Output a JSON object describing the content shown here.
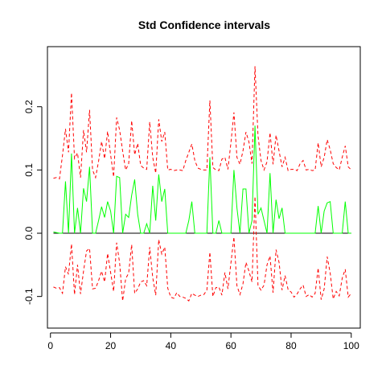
{
  "chart_data": {
    "type": "line",
    "title": "Std Confidence intervals",
    "xlabel": "",
    "ylabel": "",
    "xlim": [
      -1,
      103
    ],
    "ylim": [
      -0.15,
      0.295
    ],
    "x_ticks": [
      0,
      20,
      40,
      60,
      80,
      100
    ],
    "y_ticks": [
      -0.1,
      0.0,
      0.1,
      0.2
    ],
    "x_tick_labels": [
      "0",
      "20",
      "40",
      "60",
      "80",
      "100"
    ],
    "y_tick_labels": [
      "-0.1",
      "0.0",
      "0.1",
      "0.2"
    ],
    "grid": false,
    "legend": "none",
    "reference_line": {
      "y": 0,
      "color": "#000000"
    },
    "x": [
      1,
      2,
      3,
      4,
      5,
      6,
      7,
      8,
      9,
      10,
      11,
      12,
      13,
      14,
      15,
      16,
      17,
      18,
      19,
      20,
      21,
      22,
      23,
      24,
      25,
      26,
      27,
      28,
      29,
      30,
      31,
      32,
      33,
      34,
      35,
      36,
      37,
      38,
      39,
      40,
      41,
      42,
      43,
      44,
      45,
      46,
      47,
      48,
      49,
      50,
      51,
      52,
      53,
      54,
      55,
      56,
      57,
      58,
      59,
      60,
      61,
      62,
      63,
      64,
      65,
      66,
      67,
      68,
      69,
      70,
      71,
      72,
      73,
      74,
      75,
      76,
      77,
      78,
      79,
      80,
      81,
      82,
      83,
      84,
      85,
      86,
      87,
      88,
      89,
      90,
      91,
      92,
      93,
      94,
      95,
      96,
      97,
      98,
      99,
      100
    ],
    "series": [
      {
        "color": "#ff0000",
        "dash": "dashed",
        "values": [
          0.087,
          0.088,
          0.086,
          0.123,
          0.165,
          0.128,
          0.222,
          0.118,
          0.127,
          0.088,
          0.163,
          0.128,
          0.195,
          0.1,
          0.088,
          0.114,
          0.145,
          0.118,
          0.161,
          0.124,
          0.089,
          0.183,
          0.163,
          0.13,
          0.1,
          0.11,
          0.178,
          0.124,
          0.142,
          0.107,
          0.103,
          0.101,
          0.176,
          0.12,
          0.095,
          0.18,
          0.145,
          0.16,
          0.1,
          0.101,
          0.099,
          0.1,
          0.1,
          0.099,
          0.115,
          0.128,
          0.141,
          0.115,
          0.103,
          0.101,
          0.1,
          0.1,
          0.21,
          0.104,
          0.1,
          0.099,
          0.117,
          0.12,
          0.101,
          0.143,
          0.191,
          0.12,
          0.109,
          0.13,
          0.16,
          0.144,
          0.11,
          0.264,
          0.154,
          0.115,
          0.1,
          0.113,
          0.159,
          0.109,
          0.155,
          0.13,
          0.105,
          0.12,
          0.099,
          0.101,
          0.101,
          0.099,
          0.11,
          0.115,
          0.1,
          0.101,
          0.099,
          0.1,
          0.143,
          0.105,
          0.12,
          0.148,
          0.132,
          0.11,
          0.104,
          0.1,
          0.12,
          0.138,
          0.105,
          0.1
        ]
      },
      {
        "color": "#ff0000",
        "dash": "dashed",
        "values": [
          -0.085,
          -0.087,
          -0.086,
          -0.095,
          -0.053,
          -0.065,
          -0.017,
          -0.097,
          -0.05,
          -0.096,
          -0.06,
          -0.028,
          -0.024,
          -0.088,
          -0.087,
          -0.075,
          -0.06,
          -0.077,
          -0.032,
          -0.062,
          -0.092,
          -0.015,
          -0.047,
          -0.107,
          -0.072,
          -0.063,
          -0.018,
          -0.095,
          -0.088,
          -0.077,
          -0.075,
          -0.083,
          -0.022,
          -0.07,
          -0.098,
          -0.01,
          -0.033,
          -0.022,
          -0.087,
          -0.101,
          -0.103,
          -0.094,
          -0.1,
          -0.101,
          -0.103,
          -0.107,
          -0.095,
          -0.098,
          -0.1,
          -0.098,
          -0.097,
          -0.09,
          -0.03,
          -0.1,
          -0.086,
          -0.085,
          -0.098,
          -0.062,
          -0.088,
          -0.047,
          -0.006,
          -0.083,
          -0.097,
          -0.08,
          -0.046,
          -0.06,
          -0.077,
          0.058,
          -0.083,
          -0.09,
          -0.082,
          -0.05,
          -0.036,
          -0.094,
          -0.026,
          -0.046,
          -0.09,
          -0.067,
          -0.089,
          -0.093,
          -0.101,
          -0.096,
          -0.088,
          -0.082,
          -0.1,
          -0.097,
          -0.101,
          -0.095,
          -0.055,
          -0.105,
          -0.088,
          -0.037,
          -0.063,
          -0.104,
          -0.092,
          -0.099,
          -0.071,
          -0.057,
          -0.101,
          -0.095
        ]
      },
      {
        "color": "#00ff00",
        "dash": "solid",
        "values": [
          0.002,
          0.001,
          0.0,
          0.0,
          0.082,
          0.0,
          0.126,
          0.0,
          0.04,
          0.0,
          0.071,
          0.05,
          0.105,
          0.0,
          0.0,
          0.02,
          0.042,
          0.025,
          0.05,
          0.035,
          0.0,
          0.09,
          0.088,
          0.0,
          0.03,
          0.025,
          0.06,
          0.085,
          0.03,
          0.0,
          0.0,
          0.015,
          0.0,
          0.075,
          0.02,
          0.093,
          0.05,
          0.07,
          0.0,
          0.0,
          0.0,
          0.0,
          0.0,
          0.0,
          0.0,
          0.02,
          0.05,
          0.0,
          0.0,
          0.0,
          0.0,
          0.0,
          0.12,
          0.0,
          0.0,
          0.02,
          0.0,
          0.0,
          0.0,
          0.0,
          0.1,
          0.04,
          0.0,
          0.07,
          0.07,
          0.0,
          0.02,
          0.17,
          0.03,
          0.04,
          0.02,
          0.0,
          0.095,
          0.0,
          0.053,
          0.023,
          0.04,
          0.0,
          0.0,
          0.0,
          0.0,
          0.0,
          0.0,
          0.0,
          0.0,
          0.0,
          0.0,
          0.0,
          0.043,
          0.0,
          0.035,
          0.048,
          0.05,
          0.0,
          0.0,
          0.0,
          0.0,
          0.05,
          0.0,
          0.0
        ]
      }
    ]
  }
}
